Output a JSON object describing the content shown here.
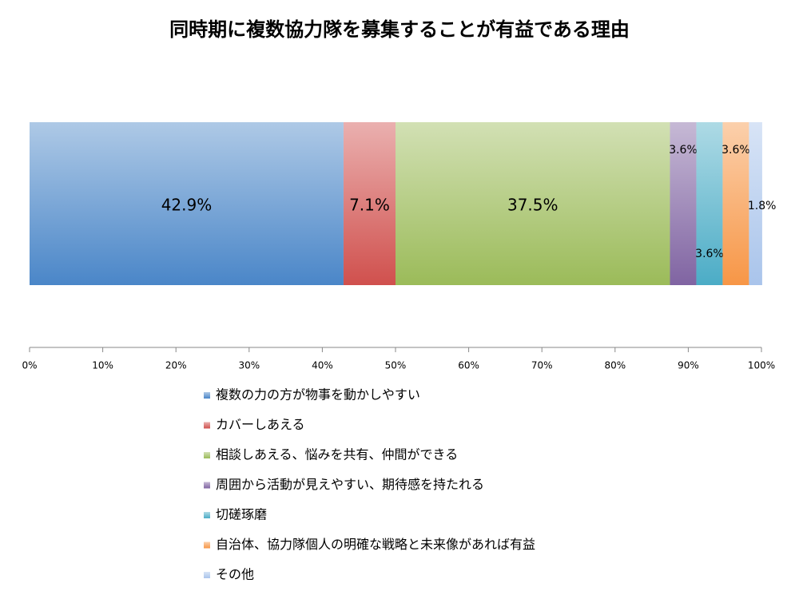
{
  "chart_data": {
    "type": "stacked-bar-horizontal",
    "title": "同時期に複数協力隊を募集することが有益である理由",
    "series": [
      {
        "name": "複数の力の方が物事を動かしやすい",
        "color": "#4a86c8",
        "values": [
          42.9
        ],
        "value_labels": [
          "42.9%"
        ]
      },
      {
        "name": "カバーしあえる",
        "color": "#d0504d",
        "values": [
          7.1
        ],
        "value_labels": [
          "7.1%"
        ]
      },
      {
        "name": "相談しあえる、悩みを共有、仲間ができる",
        "color": "#9bbb59",
        "values": [
          37.5
        ],
        "value_labels": [
          "37.5%"
        ]
      },
      {
        "name": "周囲から活動が見えやすい、期待感を持たれる",
        "color": "#8064a2",
        "values": [
          3.6
        ],
        "value_labels": [
          "3.6%"
        ]
      },
      {
        "name": "切磋琢磨",
        "color": "#4bacc6",
        "values": [
          3.6
        ],
        "value_labels": [
          "3.6%"
        ]
      },
      {
        "name": "自治体、協力隊個人の明確な戦略と未来像があれば有益",
        "color": "#f79646",
        "values": [
          3.6
        ],
        "value_labels": [
          "3.6%"
        ]
      },
      {
        "name": "その他",
        "color": "#a9c4eb",
        "values": [
          1.8
        ],
        "value_labels": [
          "1.8%"
        ]
      }
    ],
    "xlim": [
      0,
      100
    ],
    "xticks": [
      {
        "value": 0,
        "label": "0%"
      },
      {
        "value": 10,
        "label": "10%"
      },
      {
        "value": 20,
        "label": "20%"
      },
      {
        "value": 30,
        "label": "30%"
      },
      {
        "value": 40,
        "label": "40%"
      },
      {
        "value": 50,
        "label": "50%"
      },
      {
        "value": 60,
        "label": "60%"
      },
      {
        "value": 70,
        "label": "70%"
      },
      {
        "value": 80,
        "label": "80%"
      },
      {
        "value": 90,
        "label": "90%"
      },
      {
        "value": 100,
        "label": "100%"
      }
    ],
    "legend": "bottom"
  }
}
